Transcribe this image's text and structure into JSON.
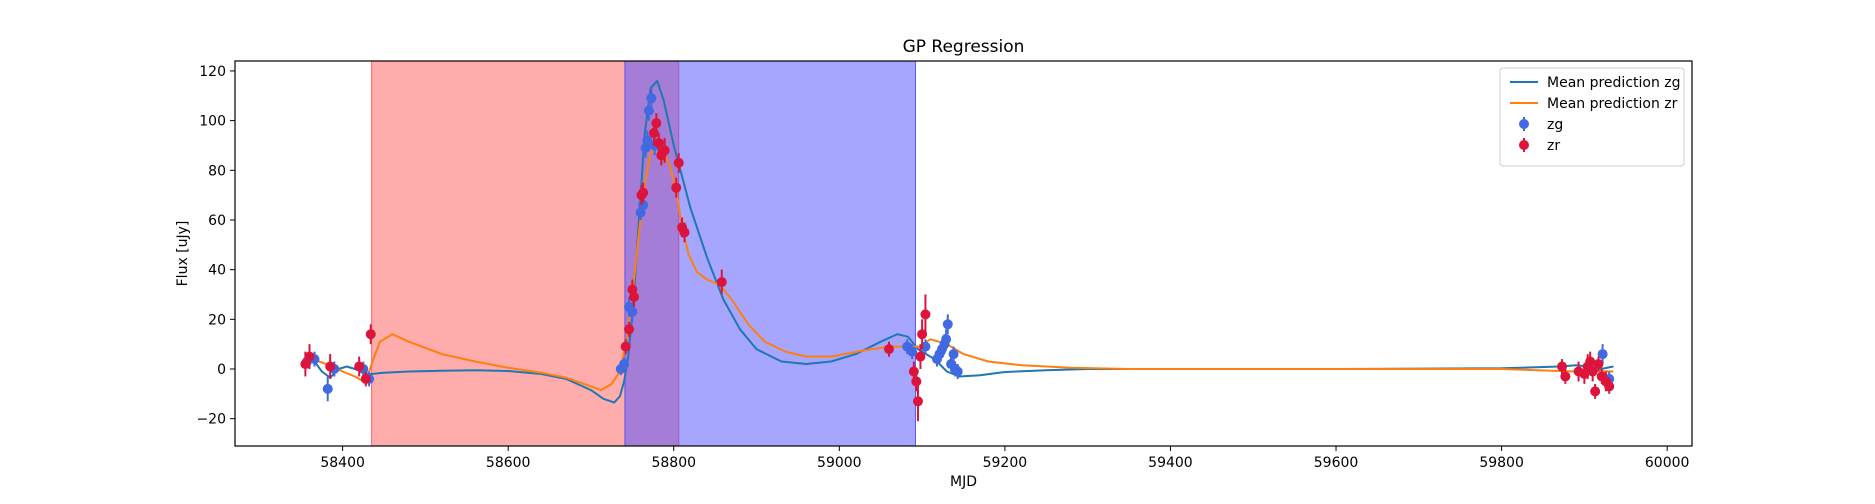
{
  "chart_data": {
    "type": "scatter",
    "title": "GP Regression",
    "xlabel": "MJD",
    "ylabel": "Flux [uJy]",
    "xlim": [
      58270,
      60030
    ],
    "ylim": [
      -31,
      124
    ],
    "xticks": [
      58400,
      58600,
      58800,
      59000,
      59200,
      59400,
      59600,
      59800,
      60000
    ],
    "yticks": [
      -20,
      0,
      20,
      40,
      60,
      80,
      100,
      120
    ],
    "legend_position": "top-right",
    "shaded_regions": [
      {
        "x0": 58435,
        "x1": 58806,
        "color": "#ff5a5a",
        "opacity": 0.5
      },
      {
        "x0": 58741,
        "x1": 59092,
        "color": "#4d4dff",
        "opacity": 0.5
      }
    ],
    "series": [
      {
        "name": "Mean prediction zg",
        "kind": "line",
        "color": "#1f77b4",
        "points": [
          [
            58355,
            2
          ],
          [
            58365,
            3.5
          ],
          [
            58375,
            -1
          ],
          [
            58385,
            -3.5
          ],
          [
            58395,
            0
          ],
          [
            58405,
            1
          ],
          [
            58415,
            0
          ],
          [
            58425,
            -1.5
          ],
          [
            58435,
            -2
          ],
          [
            58450,
            -1.5
          ],
          [
            58480,
            -1
          ],
          [
            58520,
            -0.7
          ],
          [
            58560,
            -0.5
          ],
          [
            58600,
            -0.8
          ],
          [
            58640,
            -2
          ],
          [
            58670,
            -4
          ],
          [
            58700,
            -8.5
          ],
          [
            58715,
            -12
          ],
          [
            58728,
            -13.5
          ],
          [
            58735,
            -11
          ],
          [
            58740,
            -5
          ],
          [
            58745,
            5
          ],
          [
            58750,
            22
          ],
          [
            58758,
            60
          ],
          [
            58765,
            95
          ],
          [
            58772,
            113
          ],
          [
            58780,
            116
          ],
          [
            58788,
            108
          ],
          [
            58800,
            90
          ],
          [
            58820,
            65
          ],
          [
            58840,
            45
          ],
          [
            58860,
            28
          ],
          [
            58880,
            16
          ],
          [
            58900,
            8
          ],
          [
            58930,
            3
          ],
          [
            58960,
            2
          ],
          [
            58990,
            3
          ],
          [
            59020,
            6
          ],
          [
            59050,
            11
          ],
          [
            59070,
            14
          ],
          [
            59083,
            13
          ],
          [
            59095,
            8
          ],
          [
            59105,
            6
          ],
          [
            59115,
            4
          ],
          [
            59130,
            -1
          ],
          [
            59145,
            -3
          ],
          [
            59170,
            -2.5
          ],
          [
            59200,
            -1.2
          ],
          [
            59250,
            -0.5
          ],
          [
            59300,
            0
          ],
          [
            59400,
            0
          ],
          [
            59600,
            0
          ],
          [
            59800,
            0.3
          ],
          [
            59870,
            1
          ],
          [
            59890,
            1.5
          ],
          [
            59905,
            1
          ],
          [
            59920,
            0
          ],
          [
            59935,
            1
          ]
        ]
      },
      {
        "name": "Mean prediction zr",
        "kind": "line",
        "color": "#ff7f0e",
        "points": [
          [
            58355,
            5
          ],
          [
            58380,
            2
          ],
          [
            58400,
            -1
          ],
          [
            58415,
            -3
          ],
          [
            58428,
            -5.5
          ],
          [
            58435,
            2
          ],
          [
            58445,
            11
          ],
          [
            58460,
            14
          ],
          [
            58480,
            11
          ],
          [
            58520,
            6
          ],
          [
            58560,
            3
          ],
          [
            58600,
            0.5
          ],
          [
            58640,
            -1.5
          ],
          [
            58670,
            -3.5
          ],
          [
            58700,
            -7
          ],
          [
            58712,
            -8.5
          ],
          [
            58725,
            -6
          ],
          [
            58735,
            -1
          ],
          [
            58742,
            10
          ],
          [
            58750,
            30
          ],
          [
            58758,
            55
          ],
          [
            58765,
            75
          ],
          [
            58772,
            87
          ],
          [
            58780,
            90
          ],
          [
            58788,
            87
          ],
          [
            58795,
            82
          ],
          [
            58803,
            72
          ],
          [
            58810,
            57
          ],
          [
            58818,
            46
          ],
          [
            58828,
            39
          ],
          [
            58840,
            36
          ],
          [
            58855,
            34
          ],
          [
            58870,
            28
          ],
          [
            58890,
            18
          ],
          [
            58910,
            11
          ],
          [
            58935,
            7
          ],
          [
            58960,
            5
          ],
          [
            58990,
            5
          ],
          [
            59030,
            7.5
          ],
          [
            59060,
            9
          ],
          [
            59085,
            9
          ],
          [
            59097,
            9
          ],
          [
            59110,
            12
          ],
          [
            59130,
            10
          ],
          [
            59150,
            6
          ],
          [
            59180,
            3
          ],
          [
            59220,
            1.5
          ],
          [
            59280,
            0.5
          ],
          [
            59350,
            0
          ],
          [
            59600,
            0
          ],
          [
            59800,
            0
          ],
          [
            59870,
            -0.8
          ],
          [
            59890,
            -1
          ],
          [
            59910,
            -0.8
          ],
          [
            59935,
            -1
          ]
        ]
      },
      {
        "name": "zg",
        "kind": "scatter",
        "color": "#4169e1",
        "points": [
          [
            58357,
            3,
            2
          ],
          [
            58366,
            4,
            3
          ],
          [
            58382,
            -8,
            5
          ],
          [
            58390,
            0,
            3
          ],
          [
            58425,
            0,
            3
          ],
          [
            58432,
            -4,
            3
          ],
          [
            58736,
            0,
            2.5
          ],
          [
            58740,
            2,
            2.5
          ],
          [
            58746,
            25,
            4
          ],
          [
            58750,
            23,
            4
          ],
          [
            58760,
            63,
            3
          ],
          [
            58763,
            66,
            4
          ],
          [
            58766,
            89,
            4
          ],
          [
            58768,
            92,
            4
          ],
          [
            58770,
            104,
            4
          ],
          [
            58773,
            109,
            4
          ],
          [
            58777,
            90,
            4
          ],
          [
            59082,
            9,
            3
          ],
          [
            59088,
            7,
            3
          ],
          [
            59104,
            9,
            3
          ],
          [
            59118,
            4,
            3
          ],
          [
            59121,
            6,
            3
          ],
          [
            59124,
            8,
            3
          ],
          [
            59127,
            10,
            4
          ],
          [
            59129,
            12,
            4
          ],
          [
            59131,
            18,
            4
          ],
          [
            59135,
            2,
            3
          ],
          [
            59138,
            6,
            3
          ],
          [
            59140,
            0,
            3
          ],
          [
            59143,
            -1,
            3
          ],
          [
            59922,
            6,
            4
          ],
          [
            59930,
            -4,
            3
          ]
        ]
      },
      {
        "name": "zr",
        "kind": "scatter",
        "color": "#dc143c",
        "points": [
          [
            58355,
            2,
            5
          ],
          [
            58360,
            5,
            5
          ],
          [
            58385,
            1,
            5
          ],
          [
            58420,
            1,
            4
          ],
          [
            58428,
            -4,
            3
          ],
          [
            58434,
            14,
            4
          ],
          [
            58742,
            9,
            3
          ],
          [
            58746,
            16,
            3
          ],
          [
            58750,
            32,
            4
          ],
          [
            58752,
            29,
            4
          ],
          [
            58761,
            70,
            4
          ],
          [
            58763,
            71,
            4
          ],
          [
            58776,
            95,
            5
          ],
          [
            58779,
            99,
            4
          ],
          [
            58782,
            91,
            4
          ],
          [
            58785,
            86,
            4
          ],
          [
            58789,
            88,
            5
          ],
          [
            58803,
            73,
            4
          ],
          [
            58806,
            83,
            4
          ],
          [
            58810,
            57,
            4
          ],
          [
            58813,
            55,
            4
          ],
          [
            58858,
            35,
            5
          ],
          [
            59060,
            8,
            3
          ],
          [
            59090,
            -1,
            4
          ],
          [
            59093,
            -5,
            4
          ],
          [
            59095,
            -13,
            8
          ],
          [
            59098,
            5,
            5
          ],
          [
            59100,
            14,
            6
          ],
          [
            59104,
            22,
            8
          ],
          [
            59873,
            1,
            3
          ],
          [
            59877,
            -3,
            3
          ],
          [
            59893,
            -1,
            4
          ],
          [
            59900,
            -2,
            4
          ],
          [
            59904,
            1,
            5
          ],
          [
            59907,
            3,
            4
          ],
          [
            59910,
            -1,
            4
          ],
          [
            59913,
            -9,
            3
          ],
          [
            59917,
            2,
            3
          ],
          [
            59921,
            -3,
            3
          ],
          [
            59926,
            -5,
            4
          ],
          [
            59930,
            -7,
            3
          ]
        ]
      }
    ]
  }
}
